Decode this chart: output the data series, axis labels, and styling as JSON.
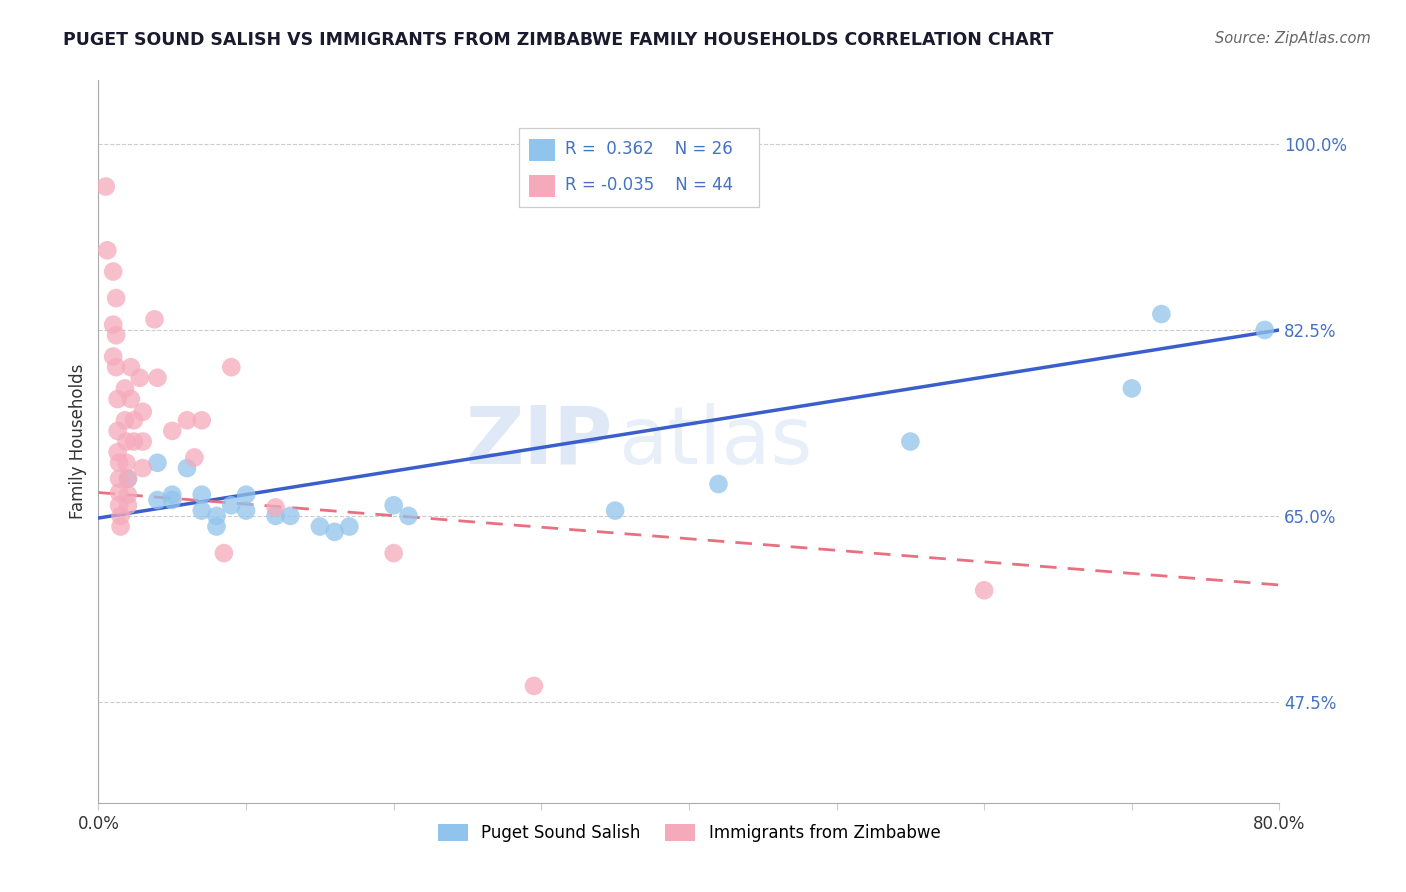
{
  "title": "PUGET SOUND SALISH VS IMMIGRANTS FROM ZIMBABWE FAMILY HOUSEHOLDS CORRELATION CHART",
  "source": "Source: ZipAtlas.com",
  "ylabel": "Family Households",
  "xlim": [
    0.0,
    0.8
  ],
  "ylim": [
    0.38,
    1.06
  ],
  "xtick_vals": [
    0.0,
    0.1,
    0.2,
    0.3,
    0.4,
    0.5,
    0.6,
    0.7,
    0.8
  ],
  "xtick_labels": [
    "0.0%",
    "",
    "",
    "",
    "",
    "",
    "",
    "",
    "80.0%"
  ],
  "ytick_vals": [
    1.0,
    0.825,
    0.65,
    0.475
  ],
  "ytick_labels": [
    "100.0%",
    "82.5%",
    "65.0%",
    "47.5%"
  ],
  "grid_color": "#cccccc",
  "background_color": "#ffffff",
  "watermark_zip": "ZIP",
  "watermark_atlas": "atlas",
  "blue_scatter_color": "#91C4EC",
  "pink_scatter_color": "#F5AABB",
  "line_blue": "#3A5FCD",
  "line_pink": "#E87080",
  "label_color": "#4472C4",
  "title_color": "#1a1a2e",
  "source_color": "#666666",
  "legend_R1": "R =  0.362",
  "legend_N1": "N = 26",
  "legend_R2": "R = -0.035",
  "legend_N2": "N = 44",
  "blue_legend_color": "#91C4EC",
  "pink_legend_color": "#F5AABB",
  "blue_line_y0": 0.648,
  "blue_line_y1": 0.825,
  "pink_line_y0": 0.672,
  "pink_line_y1": 0.585,
  "salish_points": [
    [
      0.02,
      0.685
    ],
    [
      0.04,
      0.7
    ],
    [
      0.04,
      0.665
    ],
    [
      0.05,
      0.67
    ],
    [
      0.06,
      0.695
    ],
    [
      0.07,
      0.67
    ],
    [
      0.08,
      0.65
    ],
    [
      0.09,
      0.66
    ],
    [
      0.1,
      0.655
    ],
    [
      0.1,
      0.67
    ],
    [
      0.12,
      0.65
    ],
    [
      0.13,
      0.65
    ],
    [
      0.15,
      0.64
    ],
    [
      0.16,
      0.635
    ],
    [
      0.17,
      0.64
    ],
    [
      0.2,
      0.66
    ],
    [
      0.21,
      0.65
    ],
    [
      0.35,
      0.655
    ],
    [
      0.42,
      0.68
    ],
    [
      0.55,
      0.72
    ],
    [
      0.7,
      0.77
    ],
    [
      0.72,
      0.84
    ],
    [
      0.79,
      0.825
    ],
    [
      0.05,
      0.665
    ],
    [
      0.07,
      0.655
    ],
    [
      0.08,
      0.64
    ]
  ],
  "zimbabwe_points": [
    [
      0.005,
      0.96
    ],
    [
      0.006,
      0.9
    ],
    [
      0.01,
      0.88
    ],
    [
      0.01,
      0.83
    ],
    [
      0.01,
      0.8
    ],
    [
      0.012,
      0.855
    ],
    [
      0.012,
      0.82
    ],
    [
      0.012,
      0.79
    ],
    [
      0.013,
      0.76
    ],
    [
      0.013,
      0.73
    ],
    [
      0.013,
      0.71
    ],
    [
      0.014,
      0.7
    ],
    [
      0.014,
      0.685
    ],
    [
      0.014,
      0.672
    ],
    [
      0.014,
      0.66
    ],
    [
      0.015,
      0.65
    ],
    [
      0.015,
      0.64
    ],
    [
      0.018,
      0.77
    ],
    [
      0.018,
      0.74
    ],
    [
      0.019,
      0.72
    ],
    [
      0.019,
      0.7
    ],
    [
      0.02,
      0.685
    ],
    [
      0.02,
      0.67
    ],
    [
      0.02,
      0.66
    ],
    [
      0.022,
      0.79
    ],
    [
      0.022,
      0.76
    ],
    [
      0.024,
      0.74
    ],
    [
      0.024,
      0.72
    ],
    [
      0.028,
      0.78
    ],
    [
      0.03,
      0.748
    ],
    [
      0.03,
      0.72
    ],
    [
      0.03,
      0.695
    ],
    [
      0.038,
      0.835
    ],
    [
      0.04,
      0.78
    ],
    [
      0.05,
      0.73
    ],
    [
      0.06,
      0.74
    ],
    [
      0.065,
      0.705
    ],
    [
      0.07,
      0.74
    ],
    [
      0.085,
      0.615
    ],
    [
      0.09,
      0.79
    ],
    [
      0.12,
      0.658
    ],
    [
      0.2,
      0.615
    ],
    [
      0.295,
      0.49
    ],
    [
      0.6,
      0.58
    ]
  ]
}
